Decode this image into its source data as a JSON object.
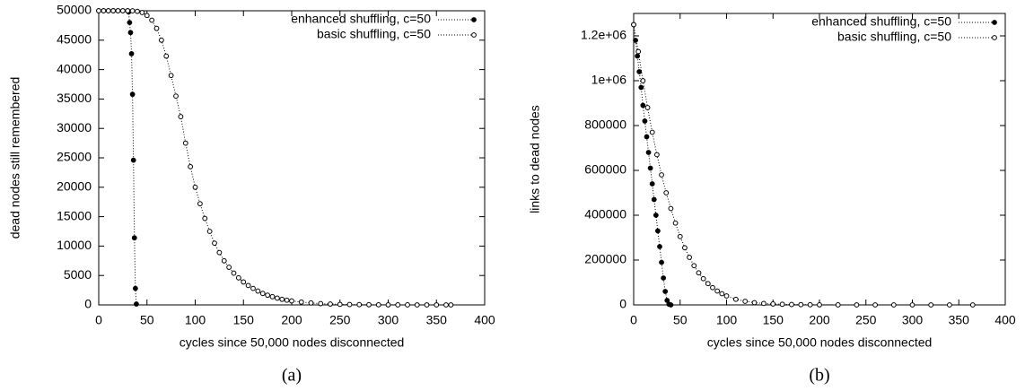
{
  "chart_data": [
    {
      "type": "line",
      "caption": "(a)",
      "x_label": "cycles since 50,000 nodes disconnected",
      "y_label": "dead nodes still remembered",
      "xlim": [
        0,
        400
      ],
      "xticks": [
        0,
        50,
        100,
        150,
        200,
        250,
        300,
        350,
        400
      ],
      "ylim": [
        0,
        50000
      ],
      "yticks": [
        0,
        5000,
        10000,
        15000,
        20000,
        25000,
        30000,
        35000,
        40000,
        45000,
        50000
      ],
      "legend": "upper right",
      "grid": false,
      "series": [
        {
          "name": "enhanced shuffling, c=50",
          "color": "#000000",
          "marker": "filled",
          "x": [
            0,
            5,
            10,
            15,
            20,
            25,
            30,
            31,
            32,
            33,
            34,
            35,
            36,
            37,
            38,
            39
          ],
          "values": [
            50000,
            50000,
            50000,
            50000,
            50000,
            50000,
            50000,
            49800,
            48000,
            46300,
            42700,
            35800,
            24600,
            11400,
            2800,
            150
          ]
        },
        {
          "name": "basic shuffling, c=50",
          "color": "#000000",
          "marker": "open",
          "x": [
            0,
            5,
            10,
            15,
            20,
            25,
            30,
            35,
            40,
            45,
            50,
            55,
            60,
            65,
            70,
            75,
            80,
            85,
            90,
            95,
            100,
            105,
            110,
            115,
            120,
            125,
            130,
            135,
            140,
            145,
            150,
            155,
            160,
            165,
            170,
            175,
            180,
            185,
            190,
            195,
            200,
            210,
            220,
            230,
            240,
            250,
            260,
            270,
            280,
            290,
            300,
            310,
            320,
            330,
            340,
            350,
            360,
            365
          ],
          "values": [
            50000,
            50000,
            50000,
            50000,
            50000,
            50000,
            50000,
            49990,
            49900,
            49700,
            49200,
            48400,
            47000,
            45000,
            42300,
            39000,
            35500,
            32000,
            27500,
            23500,
            20000,
            17200,
            14700,
            12500,
            10500,
            8900,
            7500,
            6400,
            5400,
            4600,
            3900,
            3300,
            2800,
            2350,
            1950,
            1650,
            1400,
            1150,
            950,
            800,
            680,
            480,
            330,
            220,
            150,
            100,
            65,
            45,
            30,
            20,
            13,
            9,
            6,
            4,
            3,
            2,
            1,
            1
          ]
        }
      ]
    },
    {
      "type": "line",
      "caption": "(b)",
      "x_label": "cycles since 50,000 nodes disconnected",
      "y_label": "links to dead nodes",
      "xlim": [
        0,
        400
      ],
      "xticks": [
        0,
        50,
        100,
        150,
        200,
        250,
        300,
        350,
        400
      ],
      "ylim": [
        0,
        1300000
      ],
      "yticks": [
        0,
        200000,
        400000,
        600000,
        800000,
        {
          "value": 1000000,
          "label": "1e+06"
        },
        {
          "value": 1200000,
          "label": "1.2e+06"
        }
      ],
      "legend": "upper right",
      "grid": false,
      "series": [
        {
          "name": "enhanced shuffling, c=50",
          "color": "#000000",
          "marker": "filled",
          "x": [
            0,
            2,
            4,
            6,
            8,
            10,
            12,
            14,
            16,
            18,
            20,
            22,
            24,
            26,
            28,
            30,
            32,
            34,
            36,
            38,
            40
          ],
          "values": [
            1250000,
            1180000,
            1110000,
            1040000,
            970000,
            890000,
            820000,
            750000,
            680000,
            610000,
            540000,
            470000,
            400000,
            330000,
            260000,
            190000,
            120000,
            60000,
            20000,
            3000,
            0
          ]
        },
        {
          "name": "basic shuffling, c=50",
          "color": "#000000",
          "marker": "open",
          "x": [
            0,
            5,
            10,
            15,
            20,
            25,
            30,
            35,
            40,
            45,
            50,
            55,
            60,
            65,
            70,
            75,
            80,
            85,
            90,
            95,
            100,
            110,
            120,
            130,
            140,
            150,
            160,
            170,
            180,
            190,
            200,
            220,
            240,
            260,
            280,
            300,
            320,
            340,
            365
          ],
          "values": [
            1250000,
            1130000,
            1000000,
            880000,
            770000,
            670000,
            580000,
            500000,
            430000,
            365000,
            305000,
            255000,
            212000,
            175000,
            143000,
            117000,
            95000,
            77000,
            62000,
            50000,
            40000,
            25000,
            16000,
            10000,
            6500,
            4200,
            2700,
            1700,
            1100,
            700,
            450,
            190,
            80,
            35,
            15,
            7,
            3,
            1,
            0
          ]
        }
      ]
    }
  ]
}
